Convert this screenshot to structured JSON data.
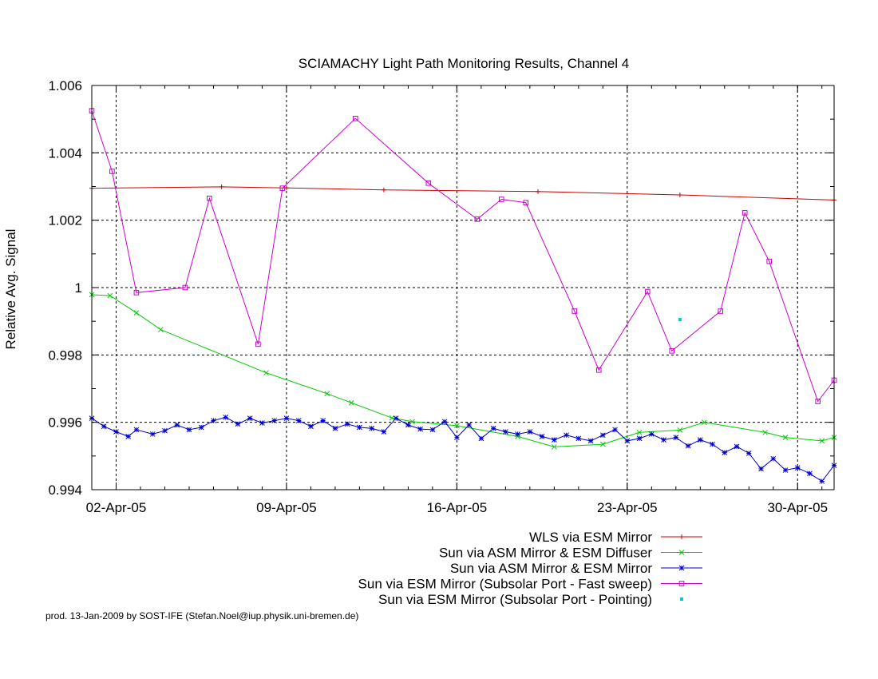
{
  "chart_data": {
    "type": "line",
    "title": "SCIAMACHY Light Path Monitoring Results, Channel 4",
    "ylabel": "Relative Avg. Signal",
    "xlabel": "",
    "x_unit": "date",
    "xlim": [
      "2005-04-01T00:00",
      "2005-05-01T12:00"
    ],
    "ylim": [
      0.994,
      1.006
    ],
    "yticks": [
      {
        "value": 0.994,
        "label": "0.994"
      },
      {
        "value": 0.996,
        "label": "0.996"
      },
      {
        "value": 0.998,
        "label": "0.998"
      },
      {
        "value": 1.0,
        "label": "1"
      },
      {
        "value": 1.002,
        "label": "1.002"
      },
      {
        "value": 1.004,
        "label": "1.004"
      },
      {
        "value": 1.006,
        "label": "1.006"
      }
    ],
    "xticks": [
      {
        "value": "2005-04-02",
        "label": "02-Apr-05"
      },
      {
        "value": "2005-04-09",
        "label": "09-Apr-05"
      },
      {
        "value": "2005-04-16",
        "label": "16-Apr-05"
      },
      {
        "value": "2005-04-23",
        "label": "23-Apr-05"
      },
      {
        "value": "2005-04-30",
        "label": "30-Apr-05"
      }
    ],
    "grid": true,
    "legend_position": "bottom-right",
    "series": [
      {
        "name": "WLS via ESM Mirror",
        "color": "#cc0000",
        "marker": "plus",
        "points": [
          [
            "2005-04-01T00:00",
            1.00295
          ],
          [
            "2005-04-06T08:00",
            1.00299
          ],
          [
            "2005-04-09T00:00",
            1.00296
          ],
          [
            "2005-04-13T00:00",
            1.0029
          ],
          [
            "2005-04-19T08:00",
            1.00285
          ],
          [
            "2005-04-25T04:00",
            1.00275
          ],
          [
            "2005-05-01T12:00",
            1.0026
          ]
        ]
      },
      {
        "name": "Sun via ASM Mirror & ESM Diffuser",
        "color": "#00cc00",
        "marker": "cross",
        "points": [
          [
            "2005-04-01T00:00",
            0.99979
          ],
          [
            "2005-04-01T18:00",
            0.99976
          ],
          [
            "2005-04-02T20:00",
            0.99925
          ],
          [
            "2005-04-03T20:00",
            0.99875
          ],
          [
            "2005-04-08T04:00",
            0.99747
          ],
          [
            "2005-04-10T16:00",
            0.99685
          ],
          [
            "2005-04-11T16:00",
            0.99658
          ],
          [
            "2005-04-13T08:00",
            0.99613
          ],
          [
            "2005-04-14T04:00",
            0.99602
          ],
          [
            "2005-04-16T00:00",
            0.9959
          ],
          [
            "2005-04-18T12:00",
            0.99558
          ],
          [
            "2005-04-20T00:00",
            0.99527
          ],
          [
            "2005-04-22T00:00",
            0.99535
          ],
          [
            "2005-04-23T12:00",
            0.9957
          ],
          [
            "2005-04-25T04:00",
            0.99577
          ],
          [
            "2005-04-26T04:00",
            0.996
          ],
          [
            "2005-04-28T16:00",
            0.9957
          ],
          [
            "2005-04-29T12:00",
            0.99555
          ],
          [
            "2005-05-01T00:00",
            0.99545
          ],
          [
            "2005-05-01T12:00",
            0.99555
          ]
        ]
      },
      {
        "name": "Sun via ASM Mirror & ESM Mirror",
        "color": "#0000cc",
        "marker": "star",
        "points": [
          [
            "2005-04-01T00:00",
            0.99612
          ],
          [
            "2005-04-01T12:00",
            0.99588
          ],
          [
            "2005-04-02T00:00",
            0.99572
          ],
          [
            "2005-04-02T12:00",
            0.99558
          ],
          [
            "2005-04-02T20:00",
            0.99578
          ],
          [
            "2005-04-03T12:00",
            0.99565
          ],
          [
            "2005-04-04T00:00",
            0.99575
          ],
          [
            "2005-04-04T12:00",
            0.99592
          ],
          [
            "2005-04-05T00:00",
            0.99578
          ],
          [
            "2005-04-05T12:00",
            0.99585
          ],
          [
            "2005-04-06T00:00",
            0.99605
          ],
          [
            "2005-04-06T12:00",
            0.99615
          ],
          [
            "2005-04-07T00:00",
            0.99595
          ],
          [
            "2005-04-07T12:00",
            0.99612
          ],
          [
            "2005-04-08T00:00",
            0.99598
          ],
          [
            "2005-04-08T12:00",
            0.99605
          ],
          [
            "2005-04-09T00:00",
            0.99612
          ],
          [
            "2005-04-09T12:00",
            0.99605
          ],
          [
            "2005-04-10T00:00",
            0.99588
          ],
          [
            "2005-04-10T12:00",
            0.99605
          ],
          [
            "2005-04-11T00:00",
            0.99582
          ],
          [
            "2005-04-11T12:00",
            0.99595
          ],
          [
            "2005-04-12T00:00",
            0.99585
          ],
          [
            "2005-04-12T12:00",
            0.99582
          ],
          [
            "2005-04-13T00:00",
            0.99572
          ],
          [
            "2005-04-13T12:00",
            0.99612
          ],
          [
            "2005-04-14T00:00",
            0.99592
          ],
          [
            "2005-04-14T12:00",
            0.9958
          ],
          [
            "2005-04-15T00:00",
            0.99578
          ],
          [
            "2005-04-15T12:00",
            0.99602
          ],
          [
            "2005-04-16T00:00",
            0.99555
          ],
          [
            "2005-04-16T12:00",
            0.99592
          ],
          [
            "2005-04-17T00:00",
            0.99552
          ],
          [
            "2005-04-17T12:00",
            0.99582
          ],
          [
            "2005-04-18T00:00",
            0.99572
          ],
          [
            "2005-04-18T12:00",
            0.99565
          ],
          [
            "2005-04-19T00:00",
            0.99572
          ],
          [
            "2005-04-19T12:00",
            0.99558
          ],
          [
            "2005-04-20T00:00",
            0.99548
          ],
          [
            "2005-04-20T12:00",
            0.99562
          ],
          [
            "2005-04-21T00:00",
            0.99552
          ],
          [
            "2005-04-21T12:00",
            0.99545
          ],
          [
            "2005-04-22T00:00",
            0.99562
          ],
          [
            "2005-04-22T12:00",
            0.99578
          ],
          [
            "2005-04-23T00:00",
            0.99545
          ],
          [
            "2005-04-23T12:00",
            0.99552
          ],
          [
            "2005-04-24T00:00",
            0.99565
          ],
          [
            "2005-04-24T12:00",
            0.99548
          ],
          [
            "2005-04-25T00:00",
            0.99555
          ],
          [
            "2005-04-25T12:00",
            0.9953
          ],
          [
            "2005-04-26T00:00",
            0.99548
          ],
          [
            "2005-04-26T12:00",
            0.99535
          ],
          [
            "2005-04-27T00:00",
            0.9951
          ],
          [
            "2005-04-27T12:00",
            0.99528
          ],
          [
            "2005-04-28T00:00",
            0.99508
          ],
          [
            "2005-04-28T12:00",
            0.99462
          ],
          [
            "2005-04-29T00:00",
            0.99492
          ],
          [
            "2005-04-29T12:00",
            0.99458
          ],
          [
            "2005-04-30T00:00",
            0.99465
          ],
          [
            "2005-04-30T12:00",
            0.99448
          ],
          [
            "2005-05-01T00:00",
            0.99425
          ],
          [
            "2005-05-01T12:00",
            0.99472
          ]
        ]
      },
      {
        "name": "Sun via ESM Mirror (Subsolar Port - Fast sweep)",
        "color": "#cc00cc",
        "marker": "square",
        "points": [
          [
            "2005-04-01T00:00",
            1.00525
          ],
          [
            "2005-04-01T20:00",
            1.00345
          ],
          [
            "2005-04-02T20:00",
            0.99985
          ],
          [
            "2005-04-04T20:00",
            1.0
          ],
          [
            "2005-04-05T20:00",
            1.00265
          ],
          [
            "2005-04-07T20:00",
            0.99832
          ],
          [
            "2005-04-08T20:00",
            1.00295
          ],
          [
            "2005-04-11T20:00",
            1.00502
          ],
          [
            "2005-04-14T20:00",
            1.0031
          ],
          [
            "2005-04-16T20:00",
            1.00203
          ],
          [
            "2005-04-17T20:00",
            1.00262
          ],
          [
            "2005-04-18T20:00",
            1.00252
          ],
          [
            "2005-04-20T20:00",
            0.9993
          ],
          [
            "2005-04-21T20:00",
            0.99755
          ],
          [
            "2005-04-23T20:00",
            0.99988
          ],
          [
            "2005-04-24T20:00",
            0.99812
          ],
          [
            "2005-04-26T20:00",
            0.9993
          ],
          [
            "2005-04-27T20:00",
            1.00222
          ],
          [
            "2005-04-28T20:00",
            1.00078
          ],
          [
            "2005-04-30T20:00",
            0.99662
          ],
          [
            "2005-05-01T12:00",
            0.99725
          ]
        ]
      },
      {
        "name": "Sun via ESM Mirror (Subsolar Port - Pointing)",
        "color": "#00cccc",
        "marker": "dot",
        "points": [
          [
            "2005-04-25T04:00",
            0.99905
          ]
        ]
      }
    ]
  },
  "footer": {
    "credit": "prod. 13-Jan-2009 by SOST-IFE (Stefan.Noel@iup.physik.uni-bremen.de)"
  }
}
